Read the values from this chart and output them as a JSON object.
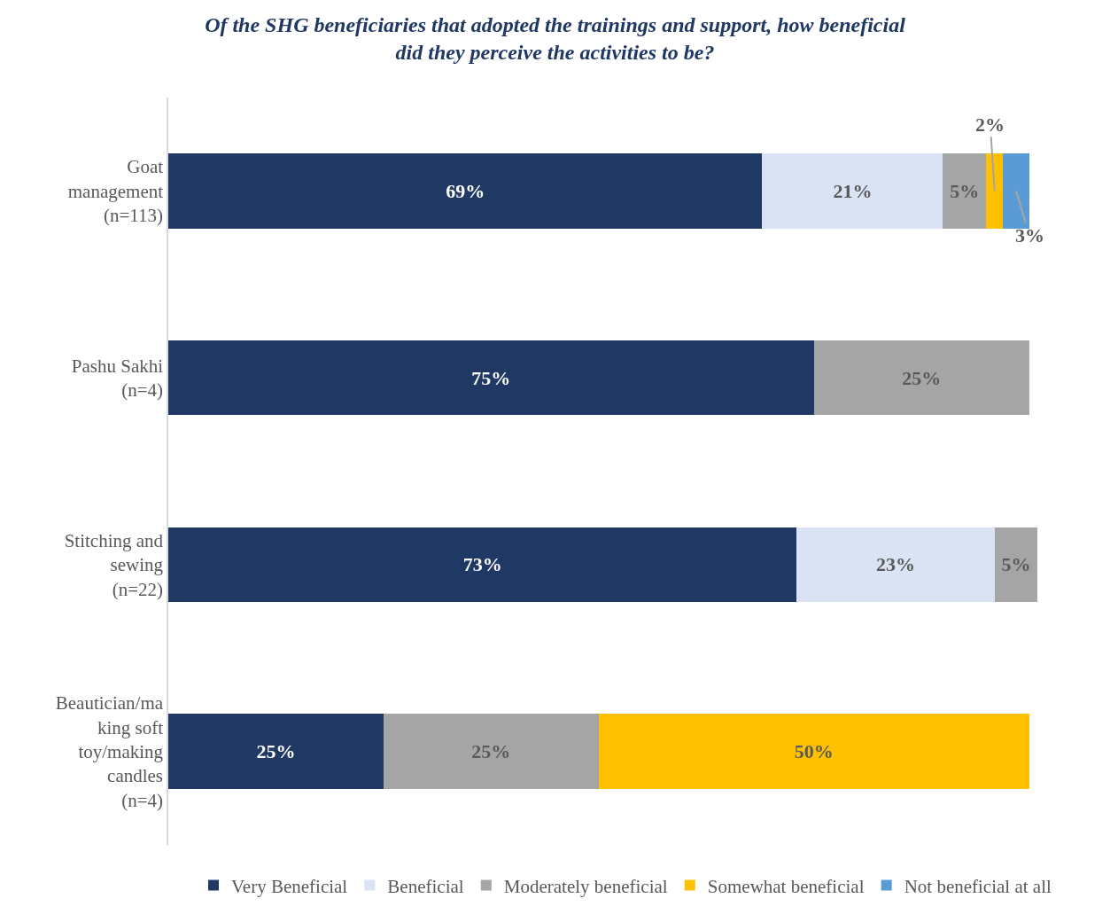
{
  "chart_data": {
    "type": "bar",
    "orientation": "horizontal",
    "stacked": true,
    "title": "Of the SHG beneficiaries that adopted the trainings and support, how beneficial did they perceive the activities to be?",
    "categories": [
      "Goat management (n=113)",
      "Pashu Sakhi (n=4)",
      "Stitching and sewing (n=22)",
      "Beautician/making soft toy/making candles (n=4)"
    ],
    "series": [
      {
        "name": "Very Beneficial",
        "color": "#203864",
        "values": [
          69,
          75,
          73,
          25
        ],
        "value_labels": [
          "69%",
          "75%",
          "73%",
          "25%"
        ]
      },
      {
        "name": "Beneficial",
        "color": "#dae3f3",
        "values": [
          21,
          null,
          23,
          null
        ],
        "value_labels": [
          "21%",
          null,
          "23%",
          null
        ]
      },
      {
        "name": "Moderately beneficial",
        "color": "#a5a5a5",
        "values": [
          5,
          25,
          5,
          25
        ],
        "value_labels": [
          "5%",
          "25%",
          "5%",
          "25%"
        ]
      },
      {
        "name": "Somewhat beneficial",
        "color": "#ffc000",
        "values": [
          2,
          null,
          null,
          50
        ],
        "value_labels": [
          "2%",
          null,
          null,
          "50%"
        ]
      },
      {
        "name": "Not beneficial at all",
        "color": "#5b9bd5",
        "values": [
          3,
          null,
          null,
          null
        ],
        "value_labels": [
          "3%",
          null,
          null,
          null
        ]
      }
    ],
    "tick_labels": "y",
    "grid": false,
    "legend": "bottom"
  }
}
